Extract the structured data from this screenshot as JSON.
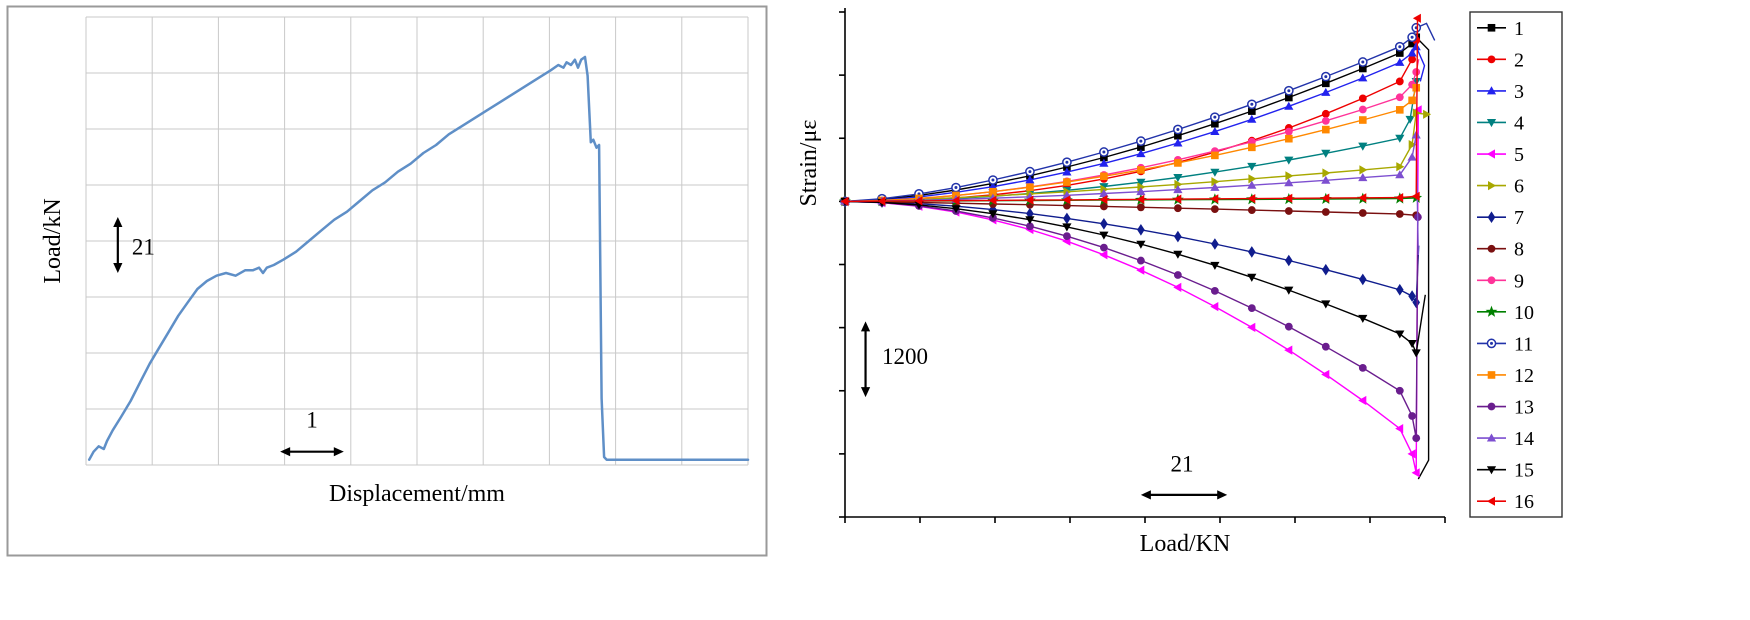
{
  "figure": {
    "description_left": "load versus displacement curve",
    "description_right": "strain versus load curves for 16 gauges with legend"
  },
  "chart_data": [
    {
      "type": "line",
      "title": "",
      "xlabel": "Displacement/mm",
      "ylabel": "Load/kN",
      "xlim": [
        0,
        10.4
      ],
      "ylim": [
        0,
        168
      ],
      "grid": true,
      "line_color": "#5f8fc7",
      "x": [
        0.05,
        0.12,
        0.2,
        0.28,
        0.33,
        0.42,
        0.55,
        0.7,
        0.85,
        1.0,
        1.15,
        1.3,
        1.45,
        1.6,
        1.75,
        1.9,
        2.05,
        2.2,
        2.35,
        2.5,
        2.62,
        2.72,
        2.78,
        2.84,
        2.95,
        3.1,
        3.3,
        3.5,
        3.7,
        3.9,
        4.1,
        4.3,
        4.5,
        4.7,
        4.9,
        5.1,
        5.3,
        5.5,
        5.7,
        5.9,
        6.1,
        6.3,
        6.5,
        6.7,
        6.9,
        7.1,
        7.3,
        7.42,
        7.5,
        7.55,
        7.62,
        7.68,
        7.73,
        7.78,
        7.84,
        7.88,
        7.93,
        7.97,
        8.02,
        8.06,
        8.1,
        8.14,
        8.18,
        10.4
      ],
      "y": [
        2,
        5,
        7,
        6,
        9,
        13,
        18,
        24,
        31,
        38,
        44,
        50,
        56,
        61,
        66,
        69,
        71,
        72,
        71,
        73,
        73,
        74,
        72,
        74,
        75,
        77,
        80,
        84,
        88,
        92,
        95,
        99,
        103,
        106,
        110,
        113,
        117,
        120,
        124,
        127,
        130,
        133,
        136,
        139,
        142,
        145,
        148,
        150,
        149,
        151,
        150,
        152,
        149,
        152,
        153,
        146,
        121,
        122,
        119,
        120,
        25,
        3,
        2,
        2
      ],
      "annotations": [
        {
          "text": "21",
          "orient": "v",
          "x": 0.5,
          "y1": 72,
          "y2": 93,
          "lx": 0.72,
          "ly": 82
        },
        {
          "text": "1",
          "orient": "h",
          "x1": 3.05,
          "x2": 4.05,
          "y": 5,
          "lx": 3.55,
          "ly": 14
        }
      ]
    },
    {
      "type": "line",
      "title": "",
      "xlabel": "Load/KN",
      "ylabel": "Strain/με",
      "xlim": [
        0,
        146
      ],
      "ylim": [
        -5000,
        3000
      ],
      "grid": false,
      "legend_position": "right",
      "annotations": [
        {
          "text": "1200",
          "orient": "v",
          "x": 5,
          "y1": -3100,
          "y2": -1900,
          "lx": 9,
          "ly": -2450
        },
        {
          "text": "21",
          "orient": "h",
          "x1": 72,
          "x2": 93,
          "y": -4650,
          "lx": 82,
          "ly": -4280
        }
      ],
      "series": [
        {
          "name": "1",
          "color": "#000000",
          "marker": "square",
          "x": [
            0,
            9,
            18,
            27,
            36,
            45,
            54,
            63,
            72,
            81,
            90,
            99,
            108,
            117,
            126,
            135,
            138,
            139
          ],
          "y": [
            0,
            30,
            95,
            180,
            285,
            405,
            545,
            695,
            860,
            1040,
            1230,
            1430,
            1645,
            1870,
            2105,
            2350,
            2500,
            2600
          ],
          "tail": {
            "x": [
              139,
              142,
              142,
              139.5
            ],
            "y": [
              2600,
              2400,
              -4100,
              -4400
            ]
          }
        },
        {
          "name": "2",
          "color": "#ee0000",
          "marker": "circle",
          "x": [
            0,
            9,
            18,
            27,
            36,
            45,
            54,
            63,
            72,
            81,
            90,
            99,
            108,
            117,
            126,
            135,
            138,
            139
          ],
          "y": [
            0,
            5,
            22,
            55,
            104,
            169,
            253,
            356,
            476,
            618,
            779,
            961,
            1163,
            1387,
            1632,
            1900,
            2250,
            2550
          ],
          "tail": {
            "x": [
              139,
              139.6
            ],
            "y": [
              2550,
              2800
            ]
          }
        },
        {
          "name": "3",
          "color": "#2222ee",
          "marker": "triangle-up",
          "x": [
            0,
            9,
            18,
            27,
            36,
            45,
            54,
            63,
            72,
            81,
            90,
            99,
            108,
            117,
            126,
            135,
            138,
            139
          ],
          "y": [
            0,
            22,
            71,
            143,
            233,
            340,
            464,
            602,
            756,
            924,
            1106,
            1299,
            1506,
            1725,
            1955,
            2200,
            2350,
            2450
          ],
          "tail": {
            "x": [
              139,
              141,
              140
            ],
            "y": [
              2450,
              2150,
              1900
            ]
          }
        },
        {
          "name": "4",
          "color": "#008080",
          "marker": "triangle-down",
          "x": [
            0,
            9,
            18,
            27,
            36,
            45,
            54,
            63,
            72,
            81,
            90,
            99,
            108,
            117,
            126,
            135,
            137.5,
            139
          ],
          "y": [
            0,
            6,
            22,
            47,
            81,
            124,
            175,
            235,
            303,
            379,
            463,
            555,
            655,
            762,
            876,
            1000,
            1300,
            1900
          ]
        },
        {
          "name": "5",
          "color": "#ff00ff",
          "marker": "triangle-left",
          "x": [
            0,
            9,
            18,
            27,
            36,
            45,
            54,
            63,
            72,
            81,
            90,
            99,
            108,
            117,
            126,
            135,
            138,
            139,
            139.5
          ],
          "y": [
            0,
            -21,
            -78,
            -169,
            -293,
            -446,
            -631,
            -846,
            -1090,
            -1363,
            -1667,
            -1997,
            -2356,
            -2742,
            -3155,
            -3600,
            -4000,
            -4300,
            1450
          ]
        },
        {
          "name": "6",
          "color": "#a8a800",
          "marker": "triangle-right",
          "x": [
            0,
            9,
            18,
            27,
            36,
            45,
            54,
            63,
            72,
            81,
            90,
            99,
            108,
            117,
            126,
            135,
            138,
            139,
            141.5
          ],
          "y": [
            0,
            12,
            33,
            58,
            87,
            118,
            152,
            189,
            228,
            269,
            312,
            357,
            403,
            450,
            499,
            550,
            900,
            1400,
            1380
          ]
        },
        {
          "name": "7",
          "color": "#101d8e",
          "marker": "diamond",
          "x": [
            0,
            9,
            18,
            27,
            36,
            45,
            54,
            63,
            72,
            81,
            90,
            99,
            108,
            117,
            126,
            135,
            138,
            139
          ],
          "y": [
            0,
            -11,
            -37,
            -77,
            -130,
            -194,
            -269,
            -355,
            -451,
            -558,
            -675,
            -801,
            -937,
            -1083,
            -1236,
            -1400,
            -1500,
            -1600
          ],
          "tail": {
            "x": [
              139,
              139.6
            ],
            "y": [
              -1600,
              -700
            ]
          }
        },
        {
          "name": "8",
          "color": "#7a1010",
          "marker": "circle",
          "x": [
            0,
            9,
            18,
            27,
            36,
            45,
            54,
            63,
            72,
            81,
            90,
            99,
            108,
            117,
            126,
            135,
            139
          ],
          "y": [
            0,
            -8,
            -18,
            -29,
            -41,
            -53,
            -67,
            -80,
            -94,
            -108,
            -123,
            -138,
            -153,
            -168,
            -184,
            -200,
            -220
          ]
        },
        {
          "name": "9",
          "color": "#ff3399",
          "marker": "circle",
          "x": [
            0,
            9,
            18,
            27,
            36,
            45,
            54,
            63,
            72,
            81,
            90,
            99,
            108,
            117,
            126,
            135,
            138,
            139
          ],
          "y": [
            0,
            13,
            44,
            91,
            153,
            228,
            317,
            418,
            532,
            658,
            796,
            944,
            1104,
            1276,
            1456,
            1650,
            1850,
            2050
          ],
          "tail": {
            "x": [
              139,
              139.6
            ],
            "y": [
              2050,
              2250
            ]
          }
        },
        {
          "name": "10",
          "color": "#008000",
          "marker": "star",
          "x": [
            0,
            9,
            18,
            27,
            36,
            45,
            54,
            63,
            72,
            81,
            90,
            99,
            108,
            117,
            126,
            135,
            139
          ],
          "y": [
            0,
            2,
            5,
            8,
            11,
            14,
            17,
            20,
            23,
            26,
            29,
            32,
            35,
            38,
            41,
            45,
            55
          ]
        },
        {
          "name": "11",
          "color": "#2233aa",
          "marker": "circle-dot",
          "x": [
            0,
            9,
            18,
            27,
            36,
            45,
            54,
            63,
            72,
            81,
            90,
            99,
            108,
            117,
            126,
            135,
            138,
            139
          ],
          "y": [
            0,
            42,
            119,
            219,
            338,
            471,
            620,
            782,
            954,
            1139,
            1334,
            1538,
            1753,
            1977,
            2208,
            2450,
            2600,
            2750
          ],
          "tail": {
            "x": [
              139,
              141.5,
              143.5
            ],
            "y": [
              2750,
              2820,
              2550
            ]
          }
        },
        {
          "name": "12",
          "color": "#ff8800",
          "marker": "square",
          "x": [
            0,
            9,
            18,
            27,
            36,
            45,
            54,
            63,
            72,
            81,
            90,
            99,
            108,
            117,
            126,
            135,
            138,
            139
          ],
          "y": [
            0,
            15,
            47,
            94,
            153,
            224,
            306,
            397,
            498,
            609,
            729,
            856,
            993,
            1137,
            1289,
            1450,
            1600,
            1800
          ]
        },
        {
          "name": "13",
          "color": "#6a1d8e",
          "marker": "circle",
          "x": [
            0,
            9,
            18,
            27,
            36,
            45,
            54,
            63,
            72,
            81,
            90,
            99,
            108,
            117,
            126,
            135,
            138,
            139,
            139.4
          ],
          "y": [
            0,
            -20,
            -72,
            -153,
            -261,
            -394,
            -551,
            -733,
            -938,
            -1166,
            -1418,
            -1691,
            -1985,
            -2302,
            -2638,
            -3000,
            -3400,
            -3750,
            -250
          ]
        },
        {
          "name": "14",
          "color": "#7d4fd0",
          "marker": "triangle-up",
          "x": [
            0,
            9,
            18,
            27,
            36,
            45,
            54,
            63,
            72,
            81,
            90,
            99,
            108,
            117,
            126,
            135,
            138,
            139
          ],
          "y": [
            0,
            6,
            17,
            32,
            51,
            72,
            97,
            124,
            154,
            186,
            220,
            256,
            294,
            334,
            376,
            420,
            700,
            1050
          ],
          "tail": {
            "x": [
              139,
              139.5
            ],
            "y": [
              1050,
              -850
            ]
          }
        },
        {
          "name": "15",
          "color": "#000000",
          "marker": "triangle-down",
          "x": [
            0,
            9,
            18,
            27,
            36,
            45,
            54,
            63,
            72,
            81,
            90,
            99,
            108,
            117,
            126,
            135,
            138,
            139
          ],
          "y": [
            0,
            -16,
            -56,
            -116,
            -195,
            -291,
            -404,
            -533,
            -677,
            -837,
            -1013,
            -1202,
            -1405,
            -1624,
            -1853,
            -2100,
            -2250,
            -2400
          ],
          "tail": {
            "x": [
              139,
              141.2
            ],
            "y": [
              -2400,
              -1480
            ]
          }
        },
        {
          "name": "16",
          "color": "#ee0000",
          "marker": "triangle-left",
          "x": [
            0,
            9,
            18,
            27,
            36,
            45,
            54,
            63,
            72,
            81,
            90,
            99,
            108,
            117,
            126,
            135,
            139,
            139.3
          ],
          "y": [
            0,
            4,
            8,
            12,
            16,
            20,
            24,
            28,
            32,
            36,
            40,
            44,
            48,
            52,
            56,
            60,
            80,
            2900
          ]
        }
      ]
    }
  ]
}
